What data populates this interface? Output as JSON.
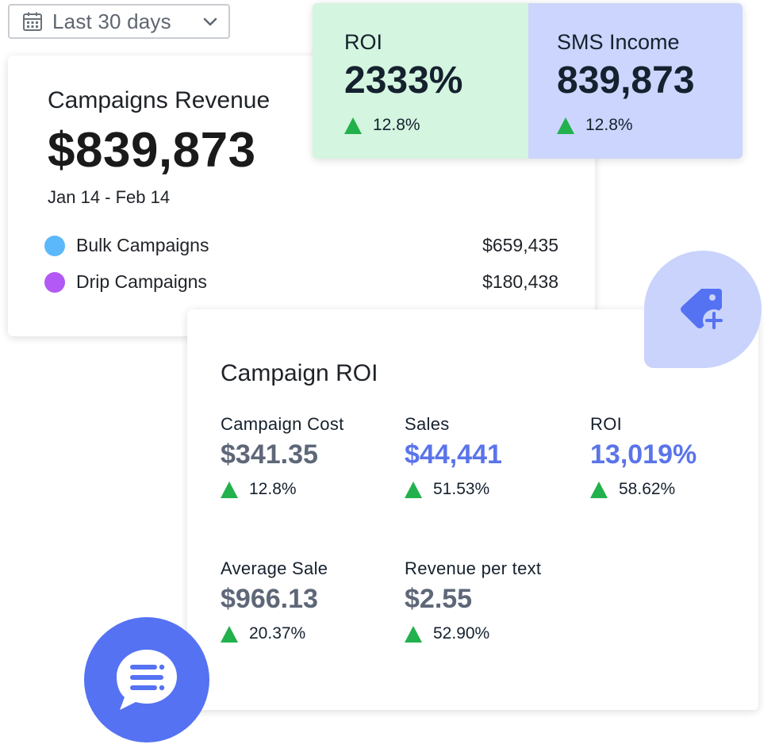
{
  "date_filter": {
    "label": "Last 30 days",
    "icon": "calendar-icon"
  },
  "revenue_card": {
    "title": "Campaigns Revenue",
    "amount": "$839,873",
    "date_range": "Jan 14 - Feb 14",
    "breakdown": [
      {
        "name": "Bulk Campaigns",
        "value": "$659,435",
        "color": "#5bb8fb"
      },
      {
        "name": "Drip Campaigns",
        "value": "$180,438",
        "color": "#b359f5"
      }
    ]
  },
  "top_stats": {
    "roi": {
      "label": "ROI",
      "value": "2333%",
      "change": "12.8%"
    },
    "sms_income": {
      "label": "SMS Income",
      "value": "839,873",
      "change": "12.8%"
    }
  },
  "campaign_roi": {
    "title": "Campaign ROI",
    "metrics": [
      {
        "label": "Campaign Cost",
        "value": "$341.35",
        "change": "12.8%"
      },
      {
        "label": "Sales",
        "value": "$44,441",
        "change": "51.53%"
      },
      {
        "label": "ROI",
        "value": "13,019%",
        "change": "58.62%"
      },
      {
        "label": "Average Sale",
        "value": "$966.13",
        "change": "20.37%"
      },
      {
        "label": "Revenue per text",
        "value": "$2.55",
        "change": "52.90%"
      }
    ]
  },
  "actions": {
    "tag_button_icon": "tag-plus-icon",
    "chat_button_icon": "chat-bubble-icon"
  },
  "colors": {
    "accent_blue": "#5a74ea",
    "positive_green": "#22b14c",
    "roi_panel_bg": "#d4f5df",
    "sms_panel_bg": "#cbd5fd"
  }
}
